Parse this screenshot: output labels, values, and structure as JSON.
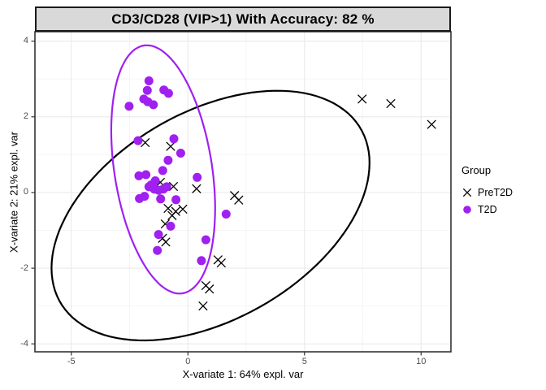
{
  "title": "CD3/CD28 (VIP>1) With Accuracy: 82 %",
  "colors": {
    "t2d_purple": "#a020f0",
    "pret2d_black": "#000000",
    "strip_fill": "#d9d9d9",
    "strip_border": "#1a1a1a",
    "panel_border": "#333333",
    "grid_major": "#ebebeb",
    "grid_minor": "#f5f5f5",
    "tick_text": "#4d4d4d",
    "tick_mark": "#333333"
  },
  "legend": {
    "title": "Group",
    "items": [
      {
        "label": "PreT2D",
        "marker": "x",
        "color": "#000000"
      },
      {
        "label": "T2D",
        "marker": "dot",
        "color": "#a020f0"
      }
    ]
  },
  "chart_data": {
    "type": "scatter",
    "title": "CD3/CD28 (VIP>1) With Accuracy: 82 %",
    "xlabel": "X-variate 1: 64% expl. var",
    "ylabel": "X-variate 2: 21% expl. var",
    "xlim": [
      -6.56,
      11.28
    ],
    "ylim": [
      -4.21,
      4.25
    ],
    "x_ticks": [
      -5,
      0,
      5,
      10
    ],
    "y_ticks": [
      -4,
      -2,
      0,
      2,
      4
    ],
    "x_minor_ticks": [
      -2.5,
      2.5,
      7.5
    ],
    "y_minor_ticks": [
      -3,
      -1,
      1,
      3
    ],
    "grid": true,
    "legend_position": "right",
    "series": [
      {
        "name": "PreT2D",
        "marker": "x",
        "color": "#000000",
        "points": [
          [
            7.47,
            2.47
          ],
          [
            8.7,
            2.35
          ],
          [
            10.45,
            1.8
          ],
          [
            -1.83,
            1.32
          ],
          [
            -0.74,
            1.22
          ],
          [
            -1.18,
            0.27
          ],
          [
            -0.62,
            0.16
          ],
          [
            0.37,
            0.1
          ],
          [
            2.0,
            -0.08
          ],
          [
            2.18,
            -0.2
          ],
          [
            -0.85,
            -0.42
          ],
          [
            -0.52,
            -0.5
          ],
          [
            -0.22,
            -0.44
          ],
          [
            -0.68,
            -0.61
          ],
          [
            -0.97,
            -0.83
          ],
          [
            -1.09,
            -1.21
          ],
          [
            -0.95,
            -1.31
          ],
          [
            1.29,
            -1.78
          ],
          [
            1.43,
            -1.86
          ],
          [
            0.77,
            -2.46
          ],
          [
            0.92,
            -2.55
          ],
          [
            0.65,
            -3.0
          ]
        ]
      },
      {
        "name": "T2D",
        "marker": "dot",
        "color": "#a020f0",
        "points": [
          [
            -1.67,
            2.95
          ],
          [
            -1.74,
            2.7
          ],
          [
            -1.03,
            2.71
          ],
          [
            -0.83,
            2.62
          ],
          [
            -1.89,
            2.47
          ],
          [
            -1.72,
            2.4
          ],
          [
            -1.48,
            2.32
          ],
          [
            -2.52,
            2.28
          ],
          [
            -2.14,
            1.37
          ],
          [
            -0.6,
            1.42
          ],
          [
            -0.31,
            1.04
          ],
          [
            -0.85,
            0.85
          ],
          [
            -1.08,
            0.58
          ],
          [
            -2.1,
            0.44
          ],
          [
            -1.8,
            0.47
          ],
          [
            -1.4,
            0.31
          ],
          [
            -1.58,
            0.2
          ],
          [
            -1.67,
            0.15
          ],
          [
            -1.44,
            0.09
          ],
          [
            -1.26,
            0.06
          ],
          [
            -1.05,
            0.09
          ],
          [
            -0.91,
            0.15
          ],
          [
            -1.86,
            -0.1
          ],
          [
            -2.08,
            -0.16
          ],
          [
            -1.17,
            -0.17
          ],
          [
            -0.51,
            -0.19
          ],
          [
            0.4,
            0.4
          ],
          [
            1.64,
            -0.57
          ],
          [
            -0.74,
            -0.89
          ],
          [
            -1.26,
            -1.11
          ],
          [
            -1.31,
            -1.53
          ],
          [
            0.77,
            -1.25
          ],
          [
            0.58,
            -1.8
          ]
        ]
      }
    ],
    "ellipses": [
      {
        "group": "PreT2D",
        "color": "#000000",
        "cx": 0.97,
        "cy": -0.61,
        "semi_major": 6.99,
        "semi_minor": 2.92,
        "angle_deg": 14.0,
        "stroke_width": 2.2
      },
      {
        "group": "T2D",
        "color": "#a020f0",
        "cx": -1.06,
        "cy": 0.61,
        "semi_major": 3.4,
        "semi_minor": 2.04,
        "angle_deg": 109.2,
        "stroke_width": 2.2
      }
    ]
  }
}
